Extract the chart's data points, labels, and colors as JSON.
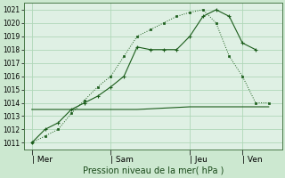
{
  "bg_color": "#cce8d0",
  "grid_color": "#b0d8b8",
  "plot_bg": "#dff0e4",
  "line_color1": "#1a5c1a",
  "line_color2": "#1a5c1a",
  "line_color3": "#1a5c1a",
  "ylim": [
    1010.5,
    1021.5
  ],
  "yticks": [
    1011,
    1012,
    1013,
    1014,
    1015,
    1016,
    1017,
    1018,
    1019,
    1020,
    1021
  ],
  "xlabel": "Pression niveau de la mer( hPa )",
  "xtick_labels": [
    "| Mer",
    "| Sam",
    "| Jeu",
    "| Ven"
  ],
  "xtick_positions": [
    0,
    3,
    6,
    8
  ],
  "xlim": [
    -0.3,
    9.5
  ],
  "series1_x": [
    0,
    0.5,
    1.0,
    1.5,
    2.0,
    2.5,
    3.0,
    3.5,
    4.0,
    4.5,
    5.0,
    5.5,
    6.0,
    6.5,
    7.0,
    7.5,
    8.0,
    8.5
  ],
  "series1_y": [
    1011.0,
    1012.0,
    1012.5,
    1013.5,
    1014.0,
    1014.5,
    1015.2,
    1016.0,
    1018.2,
    1018.0,
    1018.0,
    1018.0,
    1019.0,
    1020.5,
    1021.0,
    1020.5,
    1018.5,
    1018.0
  ],
  "series2_x": [
    0,
    0.5,
    1.0,
    1.5,
    2.0,
    2.5,
    3.0,
    3.5,
    4.0,
    4.5,
    5.0,
    5.5,
    6.0,
    6.5,
    7.0,
    7.5,
    8.0,
    8.5,
    9.0
  ],
  "series2_y": [
    1011.0,
    1011.5,
    1012.0,
    1013.2,
    1014.2,
    1015.2,
    1016.0,
    1017.5,
    1019.0,
    1019.5,
    1020.0,
    1020.5,
    1020.8,
    1021.0,
    1020.0,
    1017.5,
    1016.0,
    1014.0,
    1014.0
  ],
  "series3_x": [
    0,
    1.5,
    2.5,
    3.0,
    4.0,
    6.0,
    7.5,
    9.0
  ],
  "series3_y": [
    1013.5,
    1013.5,
    1013.5,
    1013.5,
    1013.5,
    1013.7,
    1013.7,
    1013.7
  ],
  "title_fontsize": 6.5,
  "tick_fontsize": 5.5
}
